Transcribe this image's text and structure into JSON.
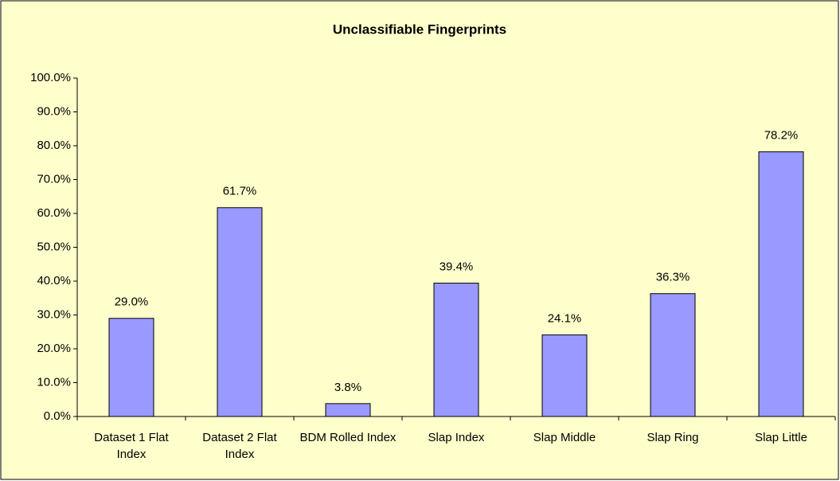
{
  "chart_data": {
    "type": "bar",
    "title": "Unclassifiable Fingerprints",
    "categories": [
      "Dataset 1 Flat Index",
      "Dataset 2 Flat Index",
      "BDM Rolled Index",
      "Slap Index",
      "Slap Middle",
      "Slap Ring",
      "Slap Little"
    ],
    "values": [
      29.0,
      61.7,
      3.8,
      39.4,
      24.1,
      36.3,
      78.2
    ],
    "value_labels": [
      "29.0%",
      "61.7%",
      "3.8%",
      "39.4%",
      "24.1%",
      "36.3%",
      "78.2%"
    ],
    "color": "#9999ff",
    "background": "#ffffcc",
    "ylim": [
      0,
      100
    ],
    "yticks": [
      {
        "value": 0,
        "label": "0.0%"
      },
      {
        "value": 10,
        "label": "10.0%"
      },
      {
        "value": 20,
        "label": "20.0%"
      },
      {
        "value": 30,
        "label": "30.0%"
      },
      {
        "value": 40,
        "label": "40.0%"
      },
      {
        "value": 50,
        "label": "50.0%"
      },
      {
        "value": 60,
        "label": "60.0%"
      },
      {
        "value": 70,
        "label": "70.0%"
      },
      {
        "value": 80,
        "label": "80.0%"
      },
      {
        "value": 90,
        "label": "90.0%"
      },
      {
        "value": 100,
        "label": "100.0%"
      }
    ],
    "grid": false
  }
}
